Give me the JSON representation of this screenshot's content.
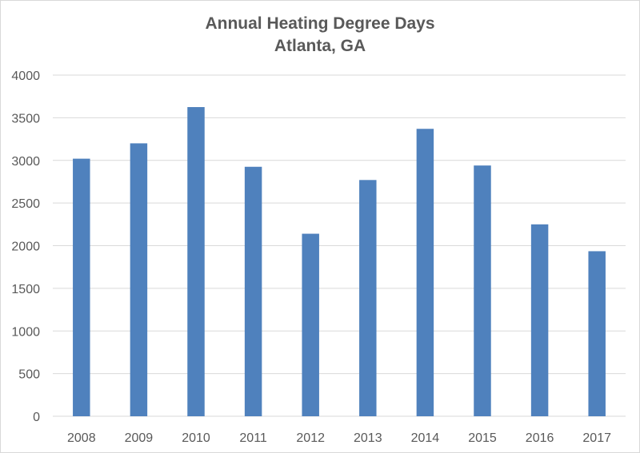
{
  "chart_data": {
    "type": "bar",
    "title": "Annual Heating Degree Days",
    "subtitle": "Atlanta, GA",
    "categories": [
      "2008",
      "2009",
      "2010",
      "2011",
      "2012",
      "2013",
      "2014",
      "2015",
      "2016",
      "2017"
    ],
    "values": [
      3020,
      3200,
      3625,
      2925,
      2140,
      2770,
      3370,
      2940,
      2250,
      1935
    ],
    "xlabel": "",
    "ylabel": "",
    "ylim": [
      0,
      4000
    ],
    "yticks": [
      "0",
      "500",
      "1000",
      "1500",
      "2000",
      "2500",
      "3000",
      "3500",
      "4000"
    ],
    "grid": true,
    "legend": "none",
    "bar_color": "#4f81bd",
    "grid_color": "#d9d9d9"
  }
}
